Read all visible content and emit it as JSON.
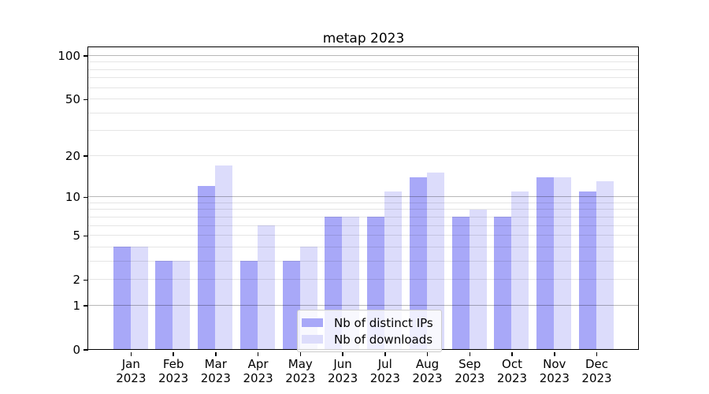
{
  "chart_data": {
    "type": "bar",
    "title": "metap 2023",
    "categories": [
      "Jan",
      "Feb",
      "Mar",
      "Apr",
      "May",
      "Jun",
      "Jul",
      "Aug",
      "Sep",
      "Oct",
      "Nov",
      "Dec"
    ],
    "category_year": "2023",
    "series": [
      {
        "name": "Nb of distinct IPs",
        "color": "#a8a8f8",
        "values": [
          4,
          3,
          12,
          3,
          3,
          7,
          7,
          14,
          7,
          7,
          14,
          11
        ]
      },
      {
        "name": "Nb of downloads",
        "color": "#dcdcfb",
        "values": [
          4,
          3,
          17,
          6,
          4,
          7,
          11,
          15,
          8,
          11,
          14,
          13
        ]
      }
    ],
    "y_axis": {
      "scale": "log1p",
      "tick_labels": [
        0,
        1,
        2,
        5,
        10,
        20,
        50,
        100
      ],
      "major_gridlines": [
        1,
        10,
        100
      ],
      "light_gridlines": [
        2,
        3,
        4,
        5,
        6,
        7,
        8,
        9,
        20,
        30,
        40,
        50,
        60,
        70,
        80,
        90
      ],
      "range": [
        0,
        114
      ]
    },
    "legend_position": "lower center",
    "grid": true
  }
}
